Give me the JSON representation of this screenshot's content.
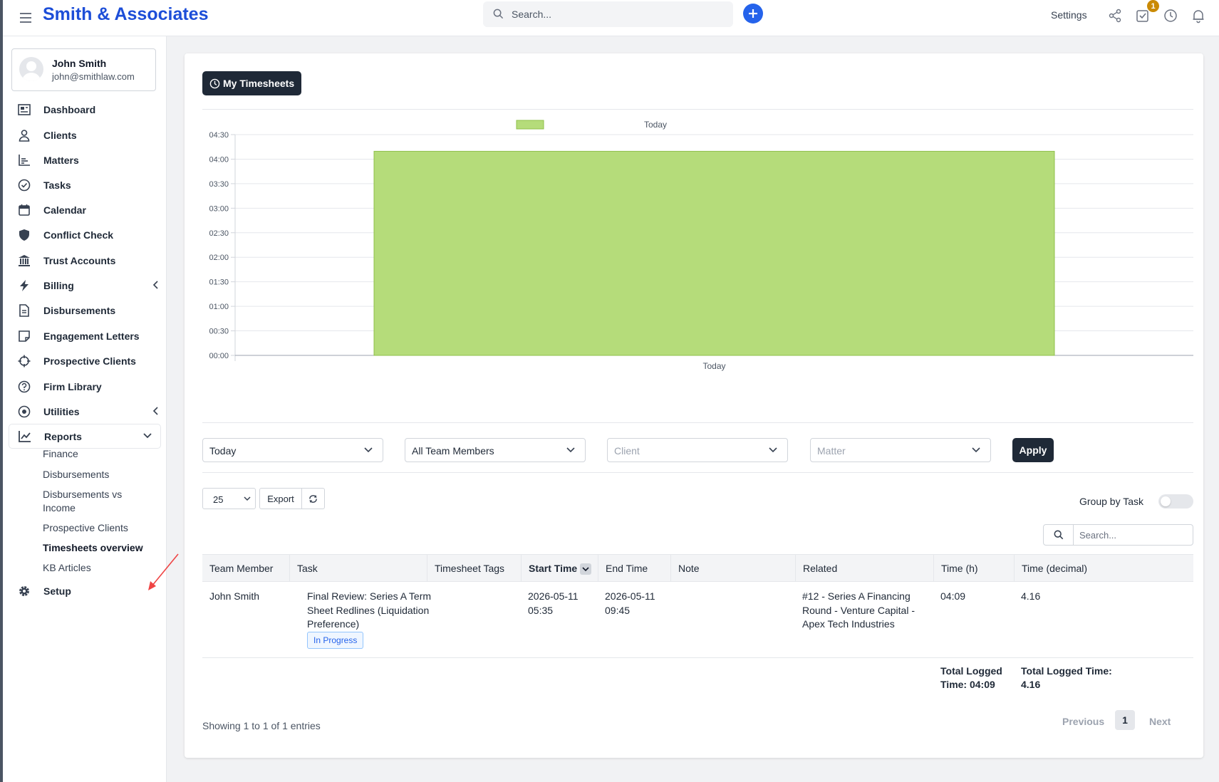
{
  "header": {
    "brand": "Smith & Associates",
    "search_placeholder": "Search...",
    "settings_label": "Settings",
    "tasks_badge": "1"
  },
  "user": {
    "name": "John Smith",
    "email": "john@smithlaw.com"
  },
  "sidebar": {
    "items": [
      {
        "label": "Dashboard",
        "icon": "dashboard-icon"
      },
      {
        "label": "Clients",
        "icon": "user-icon"
      },
      {
        "label": "Matters",
        "icon": "chart-icon"
      },
      {
        "label": "Tasks",
        "icon": "check-circle-icon"
      },
      {
        "label": "Calendar",
        "icon": "calendar-icon"
      },
      {
        "label": "Conflict Check",
        "icon": "shield-icon"
      },
      {
        "label": "Trust Accounts",
        "icon": "bank-icon"
      },
      {
        "label": "Billing",
        "icon": "bolt-icon"
      },
      {
        "label": "Disbursements",
        "icon": "document-icon"
      },
      {
        "label": "Engagement Letters",
        "icon": "note-icon"
      },
      {
        "label": "Prospective Clients",
        "icon": "crosshair-icon"
      },
      {
        "label": "Firm Library",
        "icon": "question-circle-icon"
      },
      {
        "label": "Utilities",
        "icon": "dot-circle-icon"
      },
      {
        "label": "Reports",
        "icon": "line-chart-icon"
      },
      {
        "label": "Setup",
        "icon": "gear-icon"
      }
    ],
    "reports_sub": [
      "Finance",
      "Disbursements",
      "Disbursements vs Income",
      "Prospective Clients",
      "Timesheets overview",
      "KB Articles"
    ]
  },
  "main": {
    "tab_label": "My Timesheets",
    "filters": {
      "period": "Today",
      "team": "All Team Members",
      "client_placeholder": "Client",
      "matter_placeholder": "Matter",
      "apply_label": "Apply"
    },
    "table_controls": {
      "page_length": "25",
      "export_label": "Export",
      "group_by_label": "Group by Task",
      "search_placeholder": "Search..."
    },
    "columns": [
      "Team Member",
      "Task",
      "Timesheet Tags",
      "Start Time",
      "End Time",
      "Note",
      "Related",
      "Time (h)",
      "Time (decimal)"
    ],
    "rows": [
      {
        "team_member": "John Smith",
        "task_line1": "Final Review: Series A Term",
        "task_line2": "Sheet Redlines (Liquidation",
        "task_line3": "Preference)",
        "status": "In Progress",
        "tags": "",
        "start_date": "2026-05-11",
        "start_time": "05:35",
        "end_date": "2026-05-11",
        "end_time": "09:45",
        "note": "",
        "related_line1": "#12 - Series A Financing",
        "related_line2": "Round - Venture Capital -",
        "related_line3": "Apex Tech Industries",
        "time_h": "04:09",
        "time_decimal": "4.16"
      }
    ],
    "totals": {
      "h_line1": "Total Logged",
      "h_line2": "Time: 04:09",
      "dec_line1": "Total Logged Time:",
      "dec_line2": "4.16"
    },
    "info": "Showing 1 to 1 of 1 entries",
    "pagination": {
      "previous": "Previous",
      "page": "1",
      "next": "Next"
    }
  },
  "colors": {
    "accent": "#2563eb",
    "brand": "#1d4ed8",
    "bar_fill": "#b5dc7a",
    "bar_stroke": "#8fc04a",
    "dark_button": "#1f2937"
  },
  "chart_data": {
    "type": "bar",
    "categories": [
      "Today"
    ],
    "series": [
      {
        "name": "Today",
        "values": [
          4.16
        ]
      }
    ],
    "y_ticks": [
      "00:00",
      "00:30",
      "01:00",
      "01:30",
      "02:00",
      "02:30",
      "03:00",
      "03:30",
      "04:00",
      "04:30"
    ],
    "ylim": [
      0,
      4.5
    ],
    "legend_position": "top",
    "grid": true
  }
}
